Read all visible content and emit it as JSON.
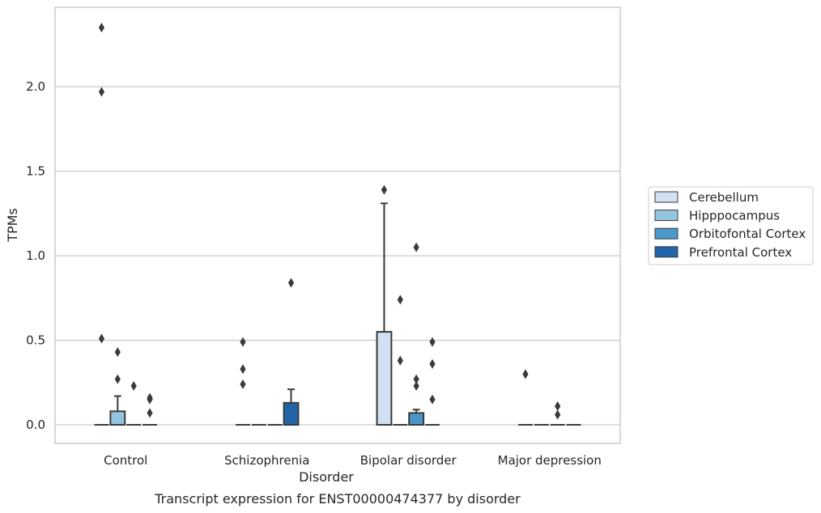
{
  "chart_data": {
    "type": "box",
    "title": "",
    "caption": "Transcript expression for ENST00000474377 by disorder",
    "xlabel": "Disorder",
    "ylabel": "TPMs",
    "ylim": [
      -0.11,
      2.47
    ],
    "yticks": [
      "0.0",
      "0.5",
      "1.0",
      "1.5",
      "2.0"
    ],
    "grid": "horizontal",
    "legend_position": "right",
    "categories": [
      "Control",
      "Schizophrenia",
      "Bipolar disorder",
      "Major depression"
    ],
    "series": [
      {
        "name": "Cerebellum",
        "color": "#d0e1f2",
        "boxes": [
          {
            "q1": 0,
            "median": 0,
            "q3": 0,
            "whisker_low": 0,
            "whisker_high": 0,
            "outliers": [
              0.51,
              1.97,
              2.35
            ]
          },
          {
            "q1": 0,
            "median": 0,
            "q3": 0,
            "whisker_low": 0,
            "whisker_high": 0,
            "outliers": [
              0.24,
              0.33,
              0.49
            ]
          },
          {
            "q1": 0,
            "median": 0,
            "q3": 0.55,
            "whisker_low": 0,
            "whisker_high": 1.31,
            "outliers": [
              1.39
            ]
          },
          {
            "q1": 0,
            "median": 0,
            "q3": 0,
            "whisker_low": 0,
            "whisker_high": 0,
            "outliers": [
              0.3
            ]
          }
        ]
      },
      {
        "name": "Hipppocampus",
        "color": "#94c4df",
        "boxes": [
          {
            "q1": 0,
            "median": 0,
            "q3": 0.08,
            "whisker_low": 0,
            "whisker_high": 0.17,
            "outliers": [
              0.27,
              0.43
            ]
          },
          {
            "q1": 0,
            "median": 0,
            "q3": 0,
            "whisker_low": 0,
            "whisker_high": 0,
            "outliers": []
          },
          {
            "q1": 0,
            "median": 0,
            "q3": 0,
            "whisker_low": 0,
            "whisker_high": 0,
            "outliers": [
              0.38,
              0.74
            ]
          },
          {
            "q1": 0,
            "median": 0,
            "q3": 0,
            "whisker_low": 0,
            "whisker_high": 0,
            "outliers": []
          }
        ]
      },
      {
        "name": "Orbitofontal Cortex",
        "color": "#4a98c9",
        "boxes": [
          {
            "q1": 0,
            "median": 0,
            "q3": 0,
            "whisker_low": 0,
            "whisker_high": 0,
            "outliers": [
              0.23
            ]
          },
          {
            "q1": 0,
            "median": 0,
            "q3": 0,
            "whisker_low": 0,
            "whisker_high": 0,
            "outliers": []
          },
          {
            "q1": 0,
            "median": 0,
            "q3": 0.07,
            "whisker_low": 0,
            "whisker_high": 0.09,
            "outliers": [
              0.23,
              0.27,
              1.05
            ]
          },
          {
            "q1": 0,
            "median": 0,
            "q3": 0,
            "whisker_low": 0,
            "whisker_high": 0,
            "outliers": [
              0.06,
              0.11
            ]
          }
        ]
      },
      {
        "name": "Prefrontal Cortex",
        "color": "#2165a8",
        "boxes": [
          {
            "q1": 0,
            "median": 0,
            "q3": 0,
            "whisker_low": 0,
            "whisker_high": 0,
            "outliers": [
              0.07,
              0.15,
              0.16
            ]
          },
          {
            "q1": 0,
            "median": 0,
            "q3": 0.13,
            "whisker_low": 0,
            "whisker_high": 0.21,
            "outliers": [
              0.84
            ]
          },
          {
            "q1": 0,
            "median": 0,
            "q3": 0,
            "whisker_low": 0,
            "whisker_high": 0,
            "outliers": [
              0.15,
              0.36,
              0.49
            ]
          },
          {
            "q1": 0,
            "median": 0,
            "q3": 0,
            "whisker_low": 0,
            "whisker_high": 0,
            "outliers": []
          }
        ]
      }
    ],
    "colors": {
      "line": "#3a3a3a",
      "grid": "#cccccc",
      "frame": "#cccccc"
    }
  }
}
